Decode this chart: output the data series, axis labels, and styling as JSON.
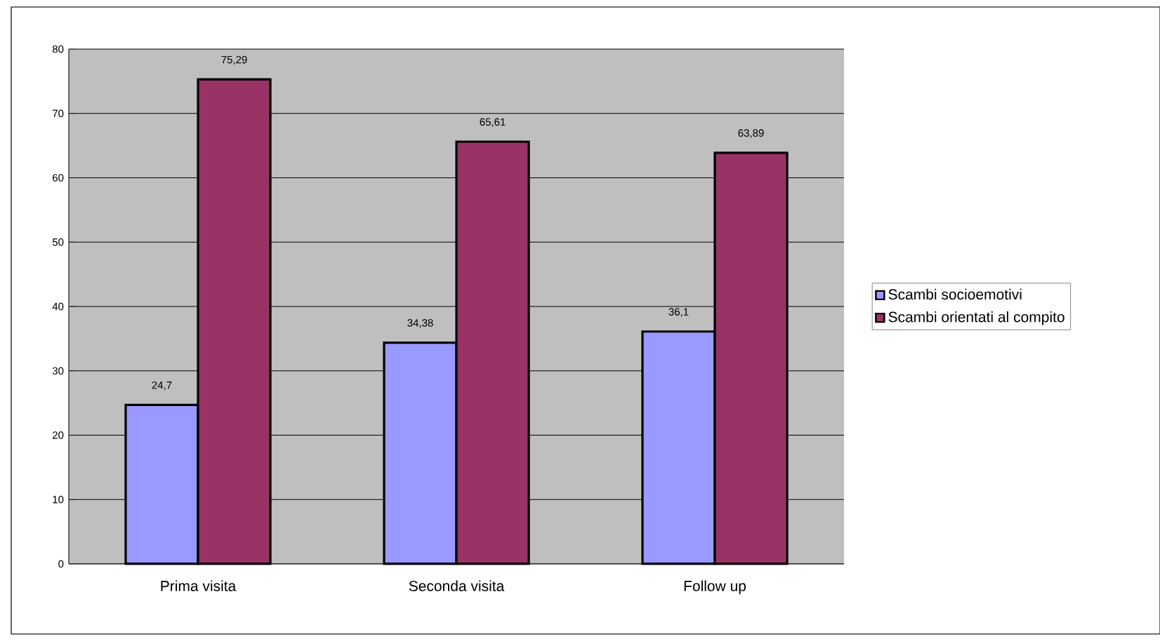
{
  "chart_data": {
    "type": "bar",
    "categories": [
      "Prima visita",
      "Seconda visita",
      "Follow up"
    ],
    "series": [
      {
        "name": "Scambi socioemotivi",
        "color": "#9999ff",
        "values": [
          24.7,
          34.38,
          36.1
        ],
        "value_labels": [
          "24,7",
          "34,38",
          "36,1"
        ]
      },
      {
        "name": "Scambi orientati al compito",
        "color": "#993366",
        "values": [
          75.29,
          65.61,
          63.89
        ],
        "value_labels": [
          "75,29",
          "65,61",
          "63,89"
        ]
      }
    ],
    "ylim": [
      0,
      80
    ],
    "yticks": [
      0,
      10,
      20,
      30,
      40,
      50,
      60,
      70,
      80
    ],
    "grid": "y",
    "legend": "right"
  }
}
